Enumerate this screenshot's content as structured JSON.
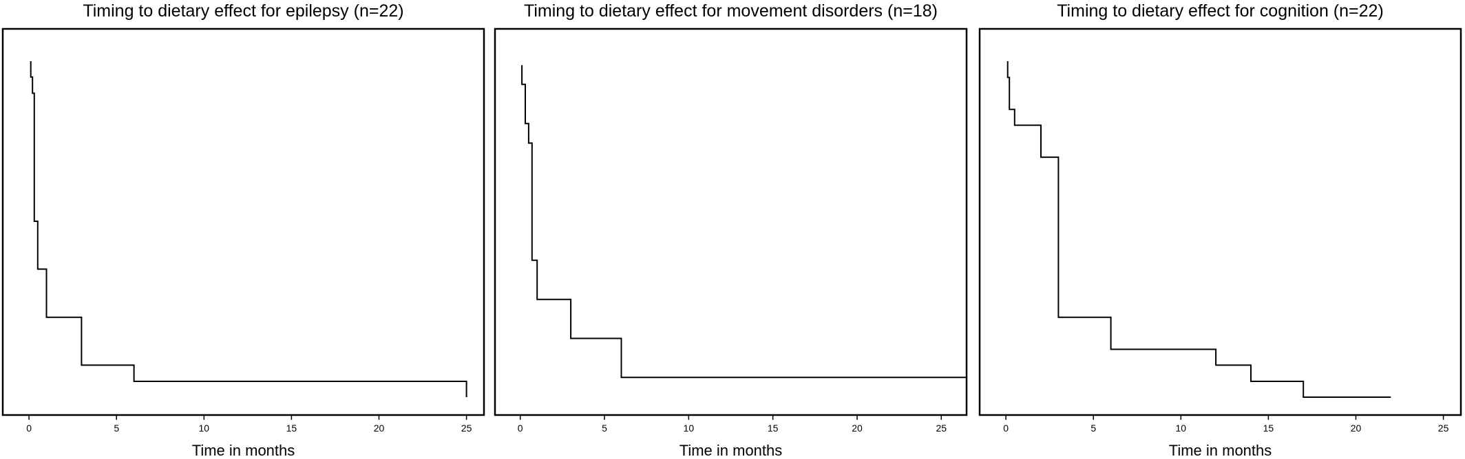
{
  "chart_data": [
    {
      "type": "line",
      "title": "Timing to dietary effect for epilepsy (n=22)",
      "xlabel": "Time in months",
      "ylabel": "",
      "xlim": [
        -1.5,
        26
      ],
      "ylim": [
        0,
        1
      ],
      "xticks": [
        0,
        5,
        10,
        15,
        20,
        25
      ],
      "grid": false,
      "series": [
        {
          "x": [
            0.1,
            0.1,
            0.2,
            0.2,
            0.3,
            0.3,
            0.5,
            0.5,
            1,
            1,
            3,
            3,
            6,
            6,
            25,
            25
          ],
          "y": [
            0.955,
            0.91,
            0.91,
            0.864,
            0.864,
            0.5,
            0.5,
            0.364,
            0.364,
            0.227,
            0.227,
            0.091,
            0.091,
            0.045,
            0.045,
            0.0
          ]
        }
      ]
    },
    {
      "type": "line",
      "title": "Timing to dietary effect for movement disorders (n=18)",
      "xlabel": "Time in months",
      "ylabel": "",
      "xlim": [
        -1.5,
        26.5
      ],
      "ylim": [
        0,
        1
      ],
      "xticks": [
        0,
        5,
        10,
        15,
        20,
        25
      ],
      "grid": false,
      "series": [
        {
          "x": [
            0.1,
            0.1,
            0.3,
            0.3,
            0.5,
            0.5,
            0.7,
            0.7,
            1,
            1,
            3,
            3,
            6,
            6,
            12,
            12,
            26.5
          ],
          "y": [
            0.944,
            0.889,
            0.889,
            0.778,
            0.778,
            0.722,
            0.722,
            0.389,
            0.389,
            0.278,
            0.278,
            0.167,
            0.167,
            0.056,
            0.056,
            0.056,
            0.056
          ]
        }
      ]
    },
    {
      "type": "line",
      "title": "Timing to dietary effect for cognition (n=22)",
      "xlabel": "Time in months",
      "ylabel": "",
      "xlim": [
        -1.5,
        26
      ],
      "ylim": [
        0,
        1
      ],
      "xticks": [
        0,
        5,
        10,
        15,
        20,
        25
      ],
      "grid": false,
      "series": [
        {
          "x": [
            0.1,
            0.1,
            0.2,
            0.2,
            0.5,
            0.5,
            2,
            2,
            3,
            3,
            6,
            6,
            12,
            12,
            14,
            14,
            17,
            17,
            22,
            22
          ],
          "y": [
            0.955,
            0.909,
            0.909,
            0.818,
            0.818,
            0.773,
            0.773,
            0.682,
            0.682,
            0.227,
            0.227,
            0.136,
            0.136,
            0.091,
            0.091,
            0.045,
            0.045,
            0.0,
            0.0,
            0.0
          ]
        }
      ]
    }
  ]
}
